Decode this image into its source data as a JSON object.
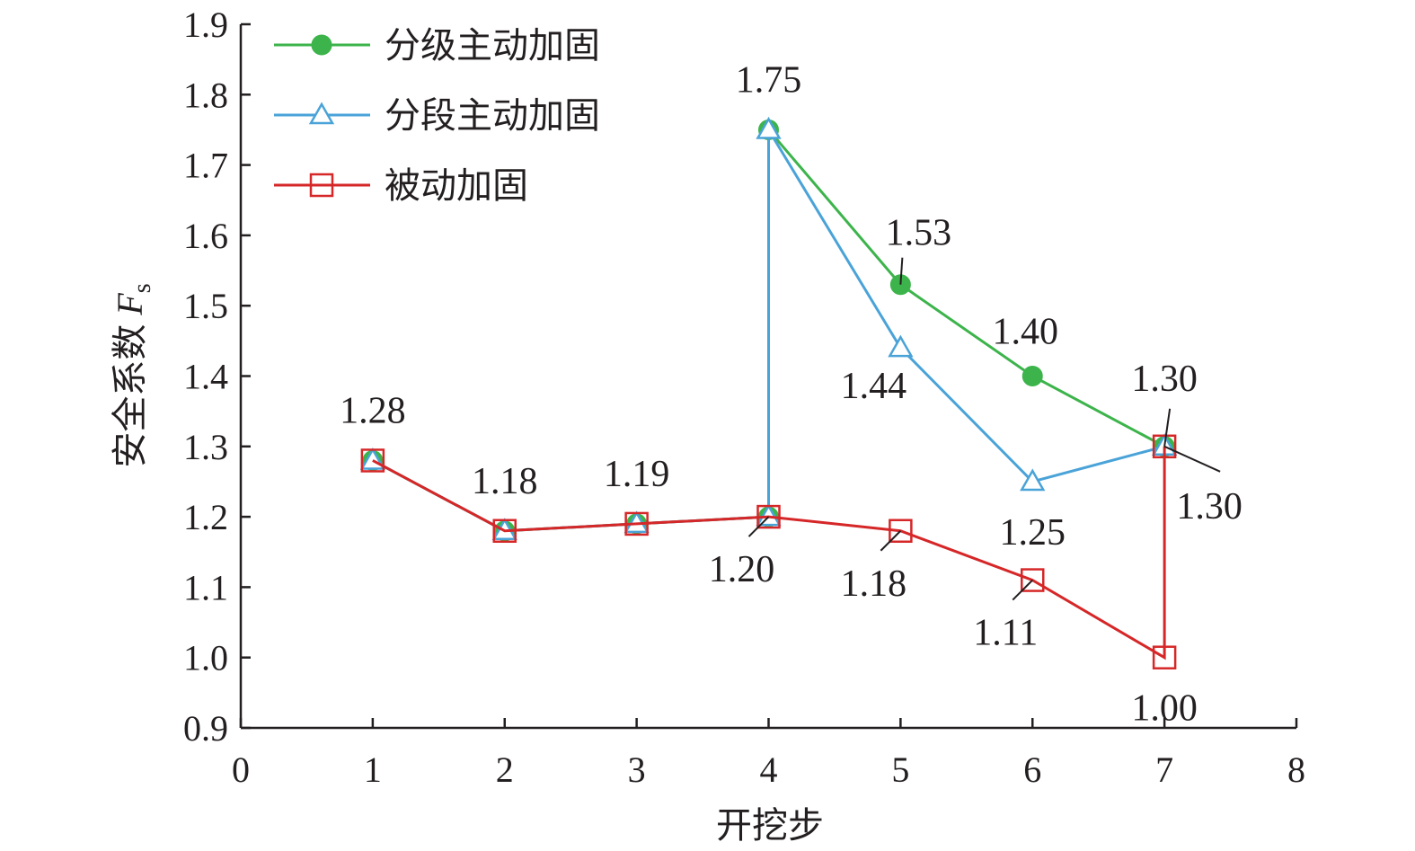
{
  "chart_data": {
    "type": "line",
    "xlabel": "开挖步",
    "ylabel": "安全系数",
    "ylabel_symbol": "F",
    "ylabel_subscript": "s",
    "xlim": [
      0,
      8
    ],
    "ylim": [
      0.9,
      1.9
    ],
    "x_ticks": [
      "0",
      "1",
      "2",
      "3",
      "4",
      "5",
      "6",
      "7",
      "8"
    ],
    "y_ticks": [
      "0.9",
      "1.0",
      "1.1",
      "1.2",
      "1.3",
      "1.4",
      "1.5",
      "1.6",
      "1.7",
      "1.8",
      "1.9"
    ],
    "grid": false,
    "legend_position": "top-left",
    "series": [
      {
        "name": "分级主动加固",
        "color": "#3cb44b",
        "marker": "filled-circle",
        "points": [
          [
            1,
            1.28
          ],
          [
            2,
            1.18
          ],
          [
            3,
            1.19
          ],
          [
            4,
            1.2
          ],
          [
            4,
            1.75
          ],
          [
            5,
            1.53
          ],
          [
            6,
            1.4
          ],
          [
            7,
            1.3
          ]
        ]
      },
      {
        "name": "分段主动加固",
        "color": "#4aa3d8",
        "marker": "open-triangle",
        "points": [
          [
            1,
            1.28
          ],
          [
            2,
            1.18
          ],
          [
            3,
            1.19
          ],
          [
            4,
            1.2
          ],
          [
            4,
            1.75
          ],
          [
            5,
            1.44
          ],
          [
            6,
            1.25
          ],
          [
            7,
            1.3
          ]
        ]
      },
      {
        "name": "被动加固",
        "color": "#d62728",
        "marker": "open-square",
        "points": [
          [
            1,
            1.28
          ],
          [
            2,
            1.18
          ],
          [
            3,
            1.19
          ],
          [
            4,
            1.2
          ],
          [
            5,
            1.18
          ],
          [
            6,
            1.11
          ],
          [
            7,
            1.0
          ],
          [
            7,
            1.3
          ]
        ]
      }
    ],
    "annotations": [
      {
        "text": "1.28",
        "x": 1,
        "y": 1.28,
        "anchor": "above"
      },
      {
        "text": "1.18",
        "x": 2,
        "y": 1.18,
        "anchor": "above"
      },
      {
        "text": "1.19",
        "x": 3,
        "y": 1.19,
        "anchor": "above"
      },
      {
        "text": "1.75",
        "x": 4,
        "y": 1.75,
        "anchor": "above"
      },
      {
        "text": "1.20",
        "x": 4,
        "y": 1.2,
        "anchor": "below-left",
        "leader": true
      },
      {
        "text": "1.53",
        "x": 5,
        "y": 1.53,
        "anchor": "above-right",
        "leader": true
      },
      {
        "text": "1.44",
        "x": 5,
        "y": 1.44,
        "anchor": "below-left"
      },
      {
        "text": "1.18",
        "x": 5,
        "y": 1.18,
        "anchor": "below-left",
        "leader": true
      },
      {
        "text": "1.40",
        "x": 6,
        "y": 1.4,
        "anchor": "above-left"
      },
      {
        "text": "1.25",
        "x": 6,
        "y": 1.25,
        "anchor": "below"
      },
      {
        "text": "1.11",
        "x": 6,
        "y": 1.11,
        "anchor": "below-left",
        "leader": true
      },
      {
        "text": "1.30",
        "x": 7,
        "y": 1.3,
        "anchor": "above",
        "leader": true
      },
      {
        "text": "1.30",
        "x": 7,
        "y": 1.3,
        "anchor": "below-right",
        "leader": true
      },
      {
        "text": "1.00",
        "x": 7,
        "y": 1.0,
        "anchor": "below"
      }
    ]
  }
}
